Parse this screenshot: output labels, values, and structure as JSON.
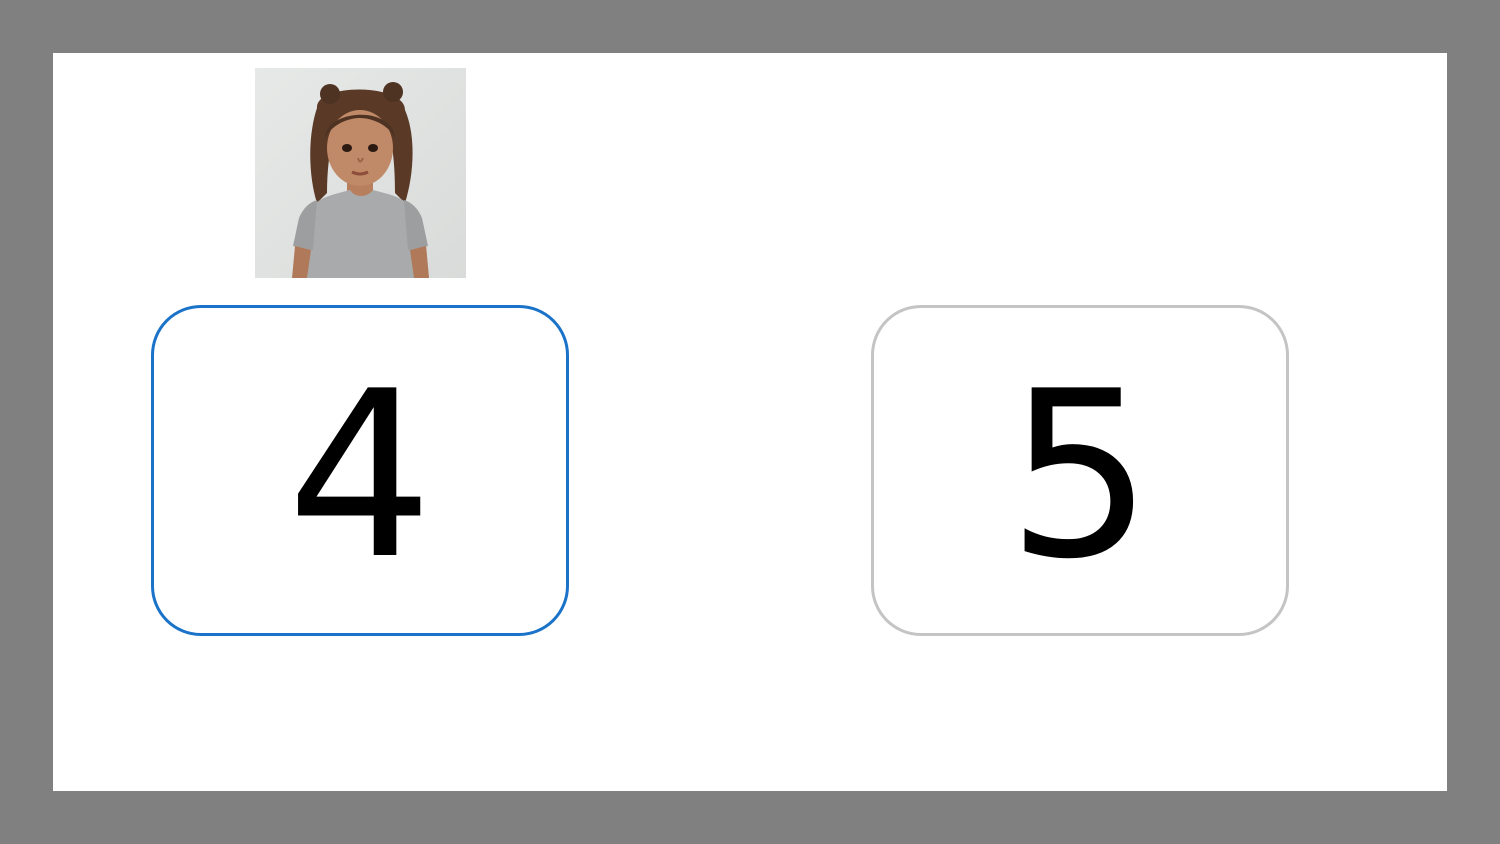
{
  "activity": {
    "portrait": {
      "icon": "child-portrait-photo"
    },
    "options": [
      {
        "label": "4",
        "selected": true
      },
      {
        "label": "5",
        "selected": false
      }
    ],
    "colors": {
      "frame": "#808080",
      "selected_border": "#1a73c8",
      "unselected_border": "#c4c4c4"
    }
  }
}
